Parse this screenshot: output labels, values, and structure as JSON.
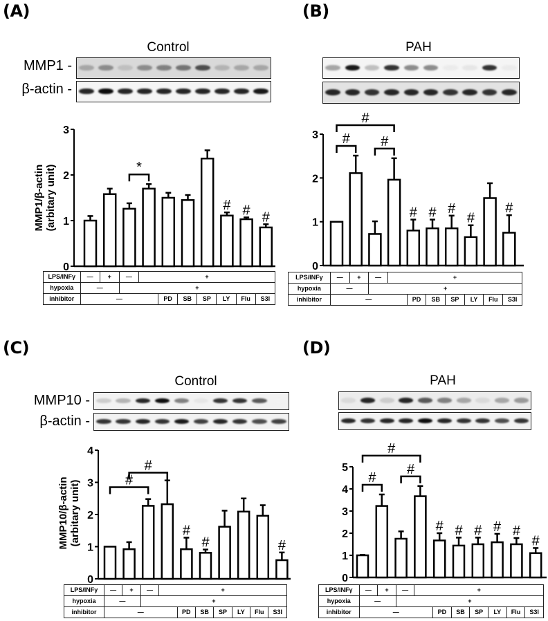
{
  "panels": {
    "A": {
      "label": "(A)",
      "group": "Control",
      "blot_labels": [
        "MMP1 -",
        "β-actin -"
      ],
      "ylabel_line1": "MMP1/β-actin",
      "ylabel_line2": "(arbitary unit)"
    },
    "B": {
      "label": "(B)",
      "group": "PAH"
    },
    "C": {
      "label": "(C)",
      "group": "Control",
      "blot_labels": [
        "MMP10 -",
        "β-actin -"
      ],
      "ylabel_line1": "MMP10/β-actin",
      "ylabel_line2": "(arbitary unit)"
    },
    "D": {
      "label": "(D)",
      "group": "PAH"
    }
  },
  "condition_table": {
    "rows": [
      "LPS/INFγ",
      "hypoxia",
      "inhibitor"
    ],
    "lps": [
      "—",
      "+",
      "—",
      "+"
    ],
    "hypoxia": [
      "—",
      "+"
    ],
    "inhibitor": [
      "—",
      "PD",
      "SB",
      "SP",
      "LY",
      "Flu",
      "S3I"
    ]
  },
  "chart_data": [
    {
      "panel": "A",
      "type": "bar",
      "title": "Control",
      "ylabel": "MMP1/β-actin (arbitary unit)",
      "xlabel": "",
      "categories": [
        "LPS-/hyp-",
        "LPS+/hyp-",
        "LPS-/hyp+",
        "LPS+/hyp+",
        "PD",
        "SB",
        "SP",
        "LY",
        "Flu",
        "S3I"
      ],
      "values": [
        1.0,
        1.58,
        1.26,
        1.7,
        1.5,
        1.45,
        2.36,
        1.11,
        1.03,
        0.85
      ],
      "error_upper": [
        1.1,
        1.7,
        1.38,
        1.8,
        1.61,
        1.56,
        2.54,
        1.18,
        1.07,
        0.92
      ],
      "ylim": [
        0,
        3
      ],
      "yticks": [
        0,
        1,
        2,
        3
      ],
      "annotations": [
        {
          "type": "bracket",
          "from": 2,
          "to": 3,
          "text": "*"
        },
        {
          "type": "mark",
          "bar": 7,
          "text": "#"
        },
        {
          "type": "mark",
          "bar": 8,
          "text": "#"
        },
        {
          "type": "mark",
          "bar": 9,
          "text": "#"
        }
      ]
    },
    {
      "panel": "B",
      "type": "bar",
      "title": "PAH",
      "ylabel": "",
      "xlabel": "",
      "categories": [
        "LPS-/hyp-",
        "LPS+/hyp-",
        "LPS-/hyp+",
        "LPS+/hyp+",
        "PD",
        "SB",
        "SP",
        "LY",
        "Flu",
        "S3I"
      ],
      "values": [
        1.0,
        2.11,
        0.72,
        1.96,
        0.8,
        0.85,
        0.85,
        0.65,
        1.54,
        0.75
      ],
      "error_upper": [
        1.0,
        2.51,
        1.01,
        2.45,
        1.05,
        1.05,
        1.14,
        0.92,
        1.88,
        1.15
      ],
      "ylim": [
        0,
        3
      ],
      "yticks": [
        0,
        1,
        2,
        3
      ],
      "annotations": [
        {
          "type": "bracket",
          "from": 0,
          "to": 1,
          "text": "#"
        },
        {
          "type": "bracket",
          "from": 2,
          "to": 3,
          "text": "#"
        },
        {
          "type": "bracket",
          "from": 0,
          "to": 3,
          "text": "#"
        },
        {
          "type": "mark",
          "bar": 4,
          "text": "#"
        },
        {
          "type": "mark",
          "bar": 5,
          "text": "#"
        },
        {
          "type": "mark",
          "bar": 6,
          "text": "#"
        },
        {
          "type": "mark",
          "bar": 7,
          "text": "#"
        },
        {
          "type": "mark",
          "bar": 9,
          "text": "#"
        }
      ]
    },
    {
      "panel": "C",
      "type": "bar",
      "title": "Control",
      "ylabel": "MMP10/β-actin (arbitary unit)",
      "xlabel": "",
      "categories": [
        "LPS-/hyp-",
        "LPS+/hyp-",
        "LPS-/hyp+",
        "LPS+/hyp+",
        "PD",
        "SB",
        "SP",
        "LY",
        "Flu",
        "S3I"
      ],
      "values": [
        1.0,
        0.92,
        2.27,
        2.32,
        0.92,
        0.81,
        1.62,
        2.09,
        1.96,
        0.58
      ],
      "error_upper": [
        1.0,
        1.14,
        2.48,
        3.06,
        1.28,
        0.91,
        2.12,
        2.5,
        2.29,
        0.82
      ],
      "ylim": [
        0,
        4
      ],
      "yticks": [
        0,
        1,
        2,
        3,
        4
      ],
      "annotations": [
        {
          "type": "bracket",
          "from": 0,
          "to": 2,
          "text": "#"
        },
        {
          "type": "bracket",
          "from": 1,
          "to": 3,
          "text": "#"
        },
        {
          "type": "mark",
          "bar": 4,
          "text": "#"
        },
        {
          "type": "mark",
          "bar": 5,
          "text": "#"
        },
        {
          "type": "mark",
          "bar": 9,
          "text": "#"
        }
      ]
    },
    {
      "panel": "D",
      "type": "bar",
      "title": "PAH",
      "ylabel": "",
      "xlabel": "",
      "categories": [
        "LPS-/hyp-",
        "LPS+/hyp-",
        "LPS-/hyp+",
        "LPS+/hyp+",
        "PD",
        "SB",
        "SP",
        "LY",
        "Flu",
        "S3I"
      ],
      "values": [
        1.0,
        3.23,
        1.75,
        3.67,
        1.67,
        1.44,
        1.5,
        1.59,
        1.5,
        1.1
      ],
      "error_upper": [
        1.02,
        3.75,
        2.08,
        4.13,
        2.0,
        1.8,
        1.8,
        1.97,
        1.78,
        1.33
      ],
      "ylim": [
        0,
        5
      ],
      "yticks": [
        0,
        1,
        2,
        3,
        4,
        5
      ],
      "annotations": [
        {
          "type": "bracket",
          "from": 0,
          "to": 1,
          "text": "#"
        },
        {
          "type": "bracket",
          "from": 2,
          "to": 3,
          "text": "#"
        },
        {
          "type": "bracket",
          "from": 0,
          "to": 3,
          "text": "#"
        },
        {
          "type": "mark",
          "bar": 4,
          "text": "#"
        },
        {
          "type": "mark",
          "bar": 5,
          "text": "#"
        },
        {
          "type": "mark",
          "bar": 6,
          "text": "#"
        },
        {
          "type": "mark",
          "bar": 7,
          "text": "#"
        },
        {
          "type": "mark",
          "bar": 8,
          "text": "#"
        },
        {
          "type": "mark",
          "bar": 9,
          "text": "#"
        }
      ]
    }
  ],
  "blots": {
    "A_target": [
      0.35,
      0.45,
      0.25,
      0.45,
      0.5,
      0.55,
      0.7,
      0.3,
      0.35,
      0.35
    ],
    "A_actin": [
      0.85,
      0.95,
      0.85,
      0.85,
      0.85,
      0.85,
      0.85,
      0.85,
      0.85,
      0.9
    ],
    "B_target": [
      0.35,
      0.9,
      0.25,
      0.8,
      0.45,
      0.45,
      0.08,
      0.1,
      0.8,
      0.08
    ],
    "B_actin": [
      0.85,
      0.85,
      0.8,
      0.85,
      0.85,
      0.85,
      0.8,
      0.85,
      0.8,
      0.85
    ],
    "C_target": [
      0.2,
      0.3,
      0.85,
      0.95,
      0.5,
      0.1,
      0.8,
      0.8,
      0.65,
      0.05
    ],
    "C_actin": [
      0.8,
      0.8,
      0.85,
      0.8,
      0.9,
      0.75,
      0.85,
      0.8,
      0.7,
      0.75
    ],
    "D_target": [
      0.15,
      0.85,
      0.2,
      0.85,
      0.65,
      0.5,
      0.35,
      0.15,
      0.35,
      0.4
    ],
    "D_actin": [
      0.85,
      0.8,
      0.85,
      0.85,
      0.95,
      0.85,
      0.8,
      0.8,
      0.7,
      0.8
    ]
  }
}
